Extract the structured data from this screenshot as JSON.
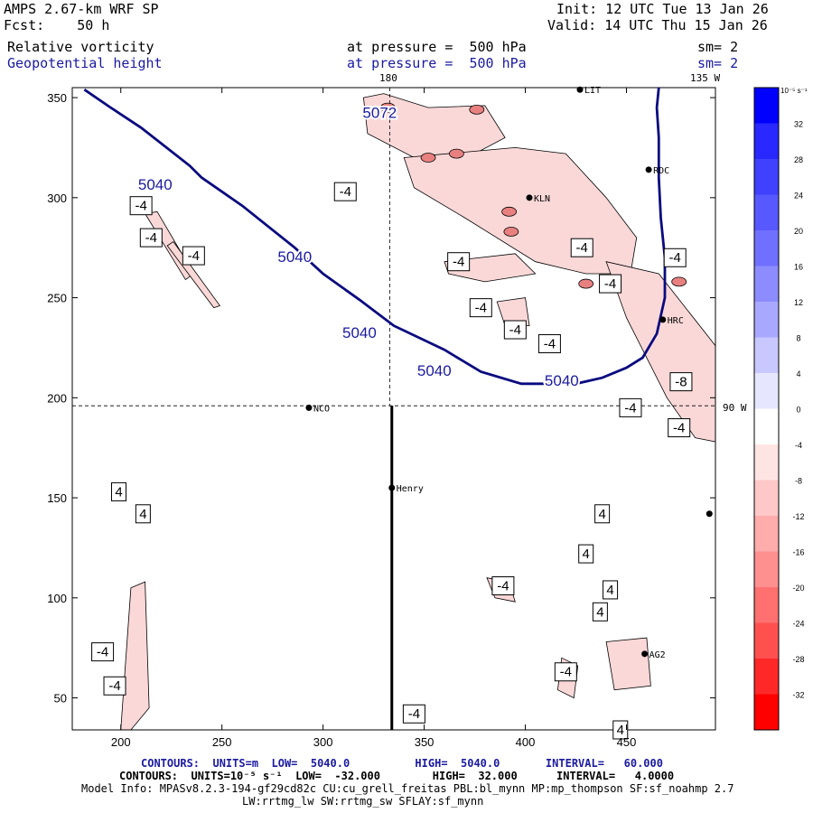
{
  "header": {
    "model_line": "AMPS 2.67-km WRF SP",
    "fcst_line": "Fcst:    50 h",
    "init_line": "Init: 12 UTC Tue 13 Jan 26",
    "valid_line": "Valid: 14 UTC Thu 15 Jan 26",
    "field1_name": "Relative vorticity",
    "field1_level": "at pressure =  500 hPa",
    "field1_sm": "sm= 2",
    "field2_name": "Geopotential height",
    "field2_level": "at pressure =  500 hPa",
    "field2_sm": "sm= 2"
  },
  "map_labels": {
    "lon_180": "180",
    "lon_135w": "135 W",
    "lon_90w": "90 W"
  },
  "stations": [
    {
      "name": "LIT",
      "x": 427,
      "y": 354
    },
    {
      "name": "RDC",
      "x": 461,
      "y": 314
    },
    {
      "name": "KLN",
      "x": 402,
      "y": 300
    },
    {
      "name": "HRC",
      "x": 468,
      "y": 239
    },
    {
      "name": "NCO",
      "x": 293,
      "y": 195
    },
    {
      "name": "Henry",
      "x": 334,
      "y": 155
    },
    {
      "name": "AG2",
      "x": 459,
      "y": 72
    },
    {
      "name": "",
      "x": 491,
      "y": 142
    }
  ],
  "footer": {
    "contours1": "CONTOURS:  UNITS=m  LOW=  5040.0          HIGH=  5040.0       INTERVAL=   60.000",
    "contours2": "CONTOURS:  UNITS=10⁻⁵ s⁻¹  LOW=  -32.000        HIGH=  32.000      INTERVAL=   4.0000",
    "model_info": "Model Info: MPASv8.2.3-194-gf29cd82c CU:cu_grell_freitas PBL:bl_mynn MP:mp_thompson SF:sf_noahmp 2.7",
    "model_info2": "LW:rrtmg_lw SW:rrtmg_sw SFLAY:sf_mynn"
  },
  "chart_data": {
    "type": "contour",
    "title": "Relative vorticity / Geopotential height at 500 hPa",
    "x_range": [
      176,
      494
    ],
    "y_range": [
      34,
      355
    ],
    "x_ticks": [
      200,
      250,
      300,
      350,
      400,
      450
    ],
    "y_ticks": [
      50,
      100,
      150,
      200,
      250,
      300,
      350
    ],
    "colorbar": {
      "units_label": "10⁻⁵ s⁻¹",
      "levels": [
        36,
        32,
        28,
        24,
        20,
        16,
        12,
        8,
        4,
        0,
        -4,
        -8,
        -12,
        -16,
        -20,
        -24,
        -28,
        -32,
        -36
      ],
      "tick_labels": [
        "32",
        "28",
        "24",
        "20",
        "16",
        "12",
        "8",
        "4",
        "0",
        "-4",
        "-8",
        "-12",
        "-16",
        "-20",
        "-24",
        "-28",
        "-32"
      ],
      "colors": [
        "#0000ff",
        "#2828ff",
        "#4040ff",
        "#5858ff",
        "#7070ff",
        "#8c8cff",
        "#a8a8ff",
        "#c8c8ff",
        "#e6e6ff",
        "#ffffff",
        "#ffe4e4",
        "#ffc8c8",
        "#ffacac",
        "#ff9090",
        "#ff7070",
        "#ff5050",
        "#ff2828",
        "#ff0000"
      ]
    },
    "geopotential_contours": [
      {
        "label": "5040",
        "points": [
          [
            182,
            354
          ],
          [
            195,
            345
          ],
          [
            210,
            335
          ],
          [
            234,
            316
          ],
          [
            240,
            310
          ],
          [
            260,
            296
          ],
          [
            286,
            275
          ],
          [
            300,
            262
          ],
          [
            318,
            249
          ],
          [
            335,
            236
          ],
          [
            360,
            224
          ],
          [
            378,
            213
          ],
          [
            398,
            207
          ],
          [
            425,
            207
          ],
          [
            438,
            210
          ],
          [
            450,
            215
          ],
          [
            458,
            220
          ],
          [
            465,
            232
          ],
          [
            469,
            250
          ],
          [
            469,
            270
          ],
          [
            467,
            290
          ],
          [
            466,
            310
          ],
          [
            466,
            330
          ],
          [
            465,
            345
          ],
          [
            466,
            355
          ]
        ]
      }
    ],
    "geopotential_labels": [
      {
        "text": "5040",
        "x": 217,
        "y": 306
      },
      {
        "text": "5040",
        "x": 286,
        "y": 270
      },
      {
        "text": "5040",
        "x": 318,
        "y": 232
      },
      {
        "text": "5040",
        "x": 355,
        "y": 213
      },
      {
        "text": "5040",
        "x": 418,
        "y": 208
      },
      {
        "text": "5072",
        "x": 328,
        "y": 342
      }
    ],
    "vorticity_labels": [
      {
        "text": "-4",
        "x": 210,
        "y": 296
      },
      {
        "text": "-4",
        "x": 215,
        "y": 280
      },
      {
        "text": "-4",
        "x": 236,
        "y": 271
      },
      {
        "text": "-4",
        "x": 311,
        "y": 303
      },
      {
        "text": "-4",
        "x": 367,
        "y": 268
      },
      {
        "text": "-4",
        "x": 378,
        "y": 245
      },
      {
        "text": "-4",
        "x": 395,
        "y": 234
      },
      {
        "text": "-4",
        "x": 428,
        "y": 275
      },
      {
        "text": "-4",
        "x": 442,
        "y": 257
      },
      {
        "text": "-4",
        "x": 412,
        "y": 227
      },
      {
        "text": "-4",
        "x": 474,
        "y": 270
      },
      {
        "text": "-4",
        "x": 452,
        "y": 195
      },
      {
        "text": "-8",
        "x": 477,
        "y": 208
      },
      {
        "text": "-4",
        "x": 476,
        "y": 185
      },
      {
        "text": "4",
        "x": 199,
        "y": 153
      },
      {
        "text": "4",
        "x": 211,
        "y": 142
      },
      {
        "text": "4",
        "x": 438,
        "y": 142
      },
      {
        "text": "4",
        "x": 430,
        "y": 122
      },
      {
        "text": "-4",
        "x": 389,
        "y": 106
      },
      {
        "text": "4",
        "x": 442,
        "y": 104
      },
      {
        "text": "4",
        "x": 437,
        "y": 93
      },
      {
        "text": "-4",
        "x": 191,
        "y": 73
      },
      {
        "text": "-4",
        "x": 197,
        "y": 56
      },
      {
        "text": "-4",
        "x": 420,
        "y": 63
      },
      {
        "text": "4",
        "x": 447,
        "y": 34
      },
      {
        "text": "-4",
        "x": 345,
        "y": 42
      }
    ]
  }
}
